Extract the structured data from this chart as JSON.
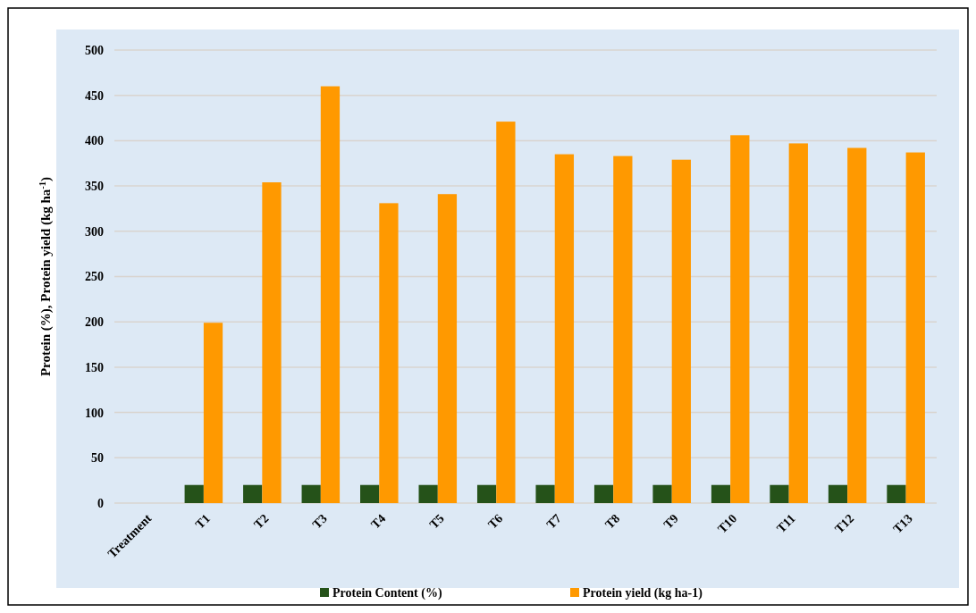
{
  "chart_data": {
    "type": "bar",
    "ylabel": "Protein (%), Protein yield (kg ha$^{-1}$)",
    "categories": [
      "Treatment",
      "T1",
      "T2",
      "T3",
      "T4",
      "T5",
      "T6",
      "T7",
      "T8",
      "T9",
      "T10",
      "T11",
      "T12",
      "T13"
    ],
    "series": [
      {
        "name": "Protein Content (%)",
        "color": "#255219",
        "values": [
          null,
          20,
          20,
          20,
          20,
          20,
          20,
          20,
          20,
          20,
          20,
          20,
          20,
          20
        ]
      },
      {
        "name": "Protein yield (kg ha-1)",
        "color": "#ff9900",
        "values": [
          null,
          199,
          354,
          460,
          331,
          341,
          421,
          385,
          383,
          379,
          406,
          397,
          392,
          387
        ]
      }
    ],
    "ylim": [
      0,
      500
    ],
    "yticks": [
      0,
      50,
      100,
      150,
      200,
      250,
      300,
      350,
      400,
      450,
      500
    ],
    "grid": "y",
    "legend": "bottom"
  }
}
